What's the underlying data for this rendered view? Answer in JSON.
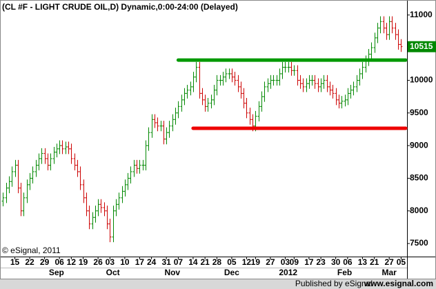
{
  "chart_data": {
    "type": "ohlc",
    "title": "(CL #F - LIGHT CRUDE OIL,D) Dynamic,0:00-24:00 (Delayed)",
    "copyright": "© eSignal, 2011",
    "footer": "Published by eSignal",
    "footer_url": "www.esignal.com",
    "up_color": "#008800",
    "down_color": "#cc0000",
    "xlim": [
      -1,
      136
    ],
    "ylim": [
      7300,
      11230
    ],
    "yticks": [
      7500,
      8000,
      8500,
      9000,
      9500,
      10000,
      10500,
      11000
    ],
    "xticks": [
      {
        "value": 4,
        "label": "15"
      },
      {
        "value": 9,
        "label": "22"
      },
      {
        "value": 14,
        "label": "29"
      },
      {
        "value": 19,
        "label": "06"
      },
      {
        "value": 23,
        "label": "12"
      },
      {
        "value": 27,
        "label": "19"
      },
      {
        "value": 32,
        "label": "26"
      },
      {
        "value": 36,
        "label": "03"
      },
      {
        "value": 41,
        "label": "10"
      },
      {
        "value": 46,
        "label": "17"
      },
      {
        "value": 50,
        "label": "24"
      },
      {
        "value": 55,
        "label": "31"
      },
      {
        "value": 59,
        "label": "07"
      },
      {
        "value": 64,
        "label": "14"
      },
      {
        "value": 68,
        "label": "21"
      },
      {
        "value": 72,
        "label": "28"
      },
      {
        "value": 77,
        "label": "05"
      },
      {
        "value": 82,
        "label": "12"
      },
      {
        "value": 85,
        "label": "19"
      },
      {
        "value": 90,
        "label": "27"
      },
      {
        "value": 95,
        "label": "03"
      },
      {
        "value": 98,
        "label": "09"
      },
      {
        "value": 103,
        "label": "17"
      },
      {
        "value": 107,
        "label": "23"
      },
      {
        "value": 112,
        "label": "30"
      },
      {
        "value": 116,
        "label": "06"
      },
      {
        "value": 121,
        "label": "13"
      },
      {
        "value": 125,
        "label": "21"
      },
      {
        "value": 130,
        "label": "27"
      },
      {
        "value": 134,
        "label": "05"
      }
    ],
    "month_labels": [
      {
        "value": 18,
        "label": "Sep"
      },
      {
        "value": 37,
        "label": "Oct"
      },
      {
        "value": 57,
        "label": "Nov"
      },
      {
        "value": 77,
        "label": "Dec"
      },
      {
        "value": 96,
        "label": "2012"
      },
      {
        "value": 115,
        "label": "Feb"
      },
      {
        "value": 130,
        "label": "Mar"
      }
    ],
    "levels": [
      {
        "value": 10310,
        "start": 59,
        "color": "#009900"
      },
      {
        "value": 9265,
        "start": 64,
        "color": "#ee0000"
      }
    ],
    "open": [
      8150,
      8200,
      8350,
      8450,
      8600,
      8700,
      8350,
      8000,
      8200,
      8400,
      8500,
      8600,
      8700,
      8800,
      8880,
      8800,
      8700,
      8800,
      8900,
      8950,
      9000,
      8950,
      8980,
      8950,
      8800,
      8700,
      8600,
      8400,
      8200,
      8000,
      7800,
      7900,
      8000,
      8100,
      8050,
      8000,
      7800,
      7600,
      8000,
      8100,
      8200,
      8300,
      8400,
      8500,
      8600,
      8700,
      8650,
      8700,
      8700,
      9000,
      9200,
      9400,
      9350,
      9300,
      9300,
      9100,
      9200,
      9300,
      9400,
      9500,
      9600,
      9700,
      9800,
      9850,
      9900,
      10050,
      10200,
      9800,
      9700,
      9600,
      9650,
      9700,
      9850,
      10000,
      10000,
      10050,
      10100,
      10100,
      10050,
      10000,
      9900,
      9800,
      9650,
      9500,
      9400,
      9300,
      9450,
      9600,
      9750,
      9900,
      9950,
      10000,
      10000,
      10000,
      10100,
      10200,
      10200,
      10200,
      10150,
      10150,
      10000,
      9950,
      9900,
      9950,
      10000,
      10000,
      9950,
      9900,
      9950,
      10000,
      9900,
      9850,
      9800,
      9700,
      9650,
      9680,
      9700,
      9800,
      9850,
      9900,
      10000,
      10100,
      10200,
      10300,
      10400,
      10500,
      10650,
      10800,
      10900,
      10800,
      10700,
      10900,
      10800,
      10700,
      10550
    ],
    "high": [
      8280,
      8430,
      8530,
      8680,
      8780,
      8780,
      8430,
      8280,
      8480,
      8580,
      8680,
      8780,
      8880,
      8960,
      8960,
      8880,
      8880,
      8980,
      9030,
      9080,
      9080,
      9060,
      9060,
      9030,
      8880,
      8780,
      8680,
      8480,
      8280,
      8080,
      7980,
      8080,
      8180,
      8180,
      8130,
      8080,
      7880,
      8080,
      8180,
      8280,
      8380,
      8480,
      8580,
      8680,
      8780,
      8780,
      8780,
      8780,
      9080,
      9280,
      9480,
      9480,
      9430,
      9380,
      9380,
      9280,
      9380,
      9480,
      9580,
      9680,
      9780,
      9880,
      9930,
      9980,
      10130,
      10280,
      10280,
      9880,
      9780,
      9730,
      9780,
      9930,
      10080,
      10080,
      10130,
      10180,
      10180,
      10180,
      10130,
      10080,
      9980,
      9880,
      9730,
      9580,
      9480,
      9530,
      9680,
      9830,
      9980,
      10030,
      10080,
      10080,
      10080,
      10180,
      10280,
      10280,
      10280,
      10280,
      10230,
      10230,
      10080,
      10030,
      10030,
      10080,
      10080,
      10080,
      10030,
      10030,
      10080,
      10080,
      9980,
      9930,
      9880,
      9780,
      9760,
      9780,
      9880,
      9930,
      9980,
      10080,
      10180,
      10280,
      10380,
      10480,
      10580,
      10730,
      10880,
      10980,
      10980,
      10880,
      10980,
      10980,
      10880,
      10780,
      10630
    ],
    "low": [
      8070,
      8120,
      8270,
      8370,
      8520,
      8270,
      7920,
      7920,
      8120,
      8320,
      8420,
      8520,
      8620,
      8720,
      8720,
      8620,
      8620,
      8720,
      8820,
      8870,
      8870,
      8870,
      8870,
      8720,
      8620,
      8520,
      8320,
      8120,
      7920,
      7720,
      7720,
      7820,
      7920,
      7970,
      7920,
      7720,
      7520,
      7520,
      7920,
      8020,
      8120,
      8220,
      8320,
      8420,
      8520,
      8570,
      8570,
      8620,
      8620,
      8920,
      9120,
      9270,
      9220,
      9220,
      9020,
      9020,
      9120,
      9220,
      9320,
      9420,
      9520,
      9620,
      9720,
      9770,
      9820,
      9970,
      9720,
      9620,
      9520,
      9520,
      9570,
      9620,
      9770,
      9920,
      9920,
      9970,
      10020,
      9970,
      9920,
      9820,
      9720,
      9570,
      9420,
      9320,
      9220,
      9220,
      9370,
      9520,
      9670,
      9820,
      9870,
      9920,
      9920,
      9920,
      10020,
      10120,
      10120,
      10070,
      10070,
      9920,
      9870,
      9820,
      9820,
      9870,
      9920,
      9870,
      9820,
      9820,
      9870,
      9820,
      9770,
      9720,
      9620,
      9570,
      9570,
      9600,
      9620,
      9720,
      9770,
      9820,
      9920,
      10020,
      10120,
      10220,
      10320,
      10420,
      10570,
      10720,
      10720,
      10620,
      10620,
      10720,
      10620,
      10470,
      10435
    ],
    "close": [
      8200,
      8350,
      8450,
      8600,
      8700,
      8350,
      8000,
      8200,
      8400,
      8500,
      8600,
      8700,
      8800,
      8880,
      8800,
      8700,
      8800,
      8900,
      8950,
      9000,
      8950,
      8980,
      8950,
      8800,
      8700,
      8600,
      8400,
      8200,
      8000,
      7800,
      7900,
      8000,
      8100,
      8050,
      8000,
      7800,
      7600,
      8000,
      8100,
      8200,
      8300,
      8400,
      8500,
      8600,
      8700,
      8650,
      8700,
      8700,
      9000,
      9200,
      9400,
      9350,
      9300,
      9300,
      9100,
      9200,
      9300,
      9400,
      9500,
      9600,
      9700,
      9800,
      9850,
      9900,
      10050,
      10200,
      9800,
      9700,
      9600,
      9650,
      9700,
      9850,
      10000,
      10000,
      10050,
      10100,
      10100,
      10050,
      10000,
      9900,
      9800,
      9650,
      9500,
      9400,
      9300,
      9450,
      9600,
      9750,
      9900,
      9950,
      10000,
      10000,
      10000,
      10100,
      10200,
      10200,
      10200,
      10150,
      10150,
      10000,
      9950,
      9900,
      9950,
      10000,
      10000,
      9950,
      9900,
      9950,
      10000,
      9900,
      9850,
      9800,
      9700,
      9650,
      9680,
      9700,
      9800,
      9850,
      9900,
      10000,
      10100,
      10200,
      10300,
      10400,
      10500,
      10650,
      10800,
      10900,
      10800,
      10700,
      10900,
      10800,
      10700,
      10550,
      10515
    ]
  }
}
